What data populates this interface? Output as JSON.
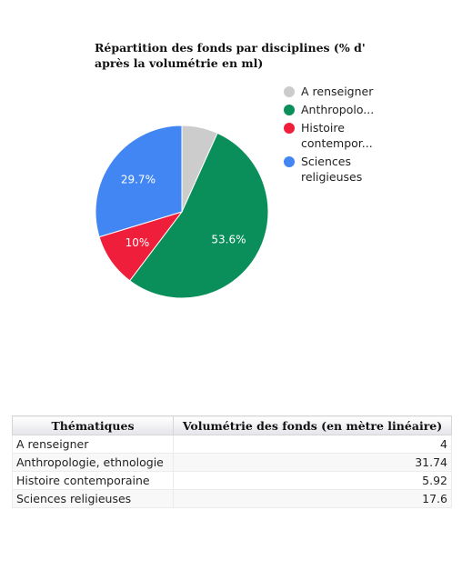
{
  "chart_data": {
    "type": "pie",
    "title": "Répartition des fonds par disciplines (% d'\naprès la volumétrie en ml)",
    "slices": [
      {
        "legend": "A renseigner",
        "value": 4,
        "label": "",
        "color": "#cccccc"
      },
      {
        "legend": "Anthropolo...",
        "value": 31.74,
        "label": "53.6%",
        "color": "#0b8f5a"
      },
      {
        "legend": "Histoire\ncontempor...",
        "value": 5.92,
        "label": "10%",
        "color": "#ef1f3b"
      },
      {
        "legend": "Sciences\nreligieuses",
        "value": 17.6,
        "label": "29.7%",
        "color": "#4286f4"
      }
    ],
    "legend_position": "right"
  },
  "table": {
    "headers": [
      "Thématiques",
      "Volumétrie des fonds (en mètre linéaire)"
    ],
    "rows": [
      [
        "A renseigner",
        "4"
      ],
      [
        "Anthropologie, ethnologie",
        "31.74"
      ],
      [
        "Histoire contemporaine",
        "5.92"
      ],
      [
        "Sciences religieuses",
        "17.6"
      ]
    ]
  }
}
